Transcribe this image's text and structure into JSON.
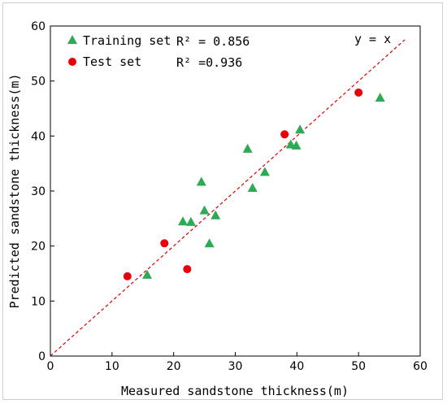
{
  "chart_data": {
    "type": "scatter",
    "xlabel": "Measured sandstone thickness(m)",
    "ylabel": "Predicted sandstone thickness(m)",
    "xlim": [
      0,
      60
    ],
    "ylim": [
      0,
      60
    ],
    "x_ticks": [
      "0",
      "10",
      "20",
      "30",
      "40",
      "50",
      "60"
    ],
    "y_ticks": [
      "0",
      "10",
      "20",
      "30",
      "40",
      "50",
      "60"
    ],
    "grid": false,
    "legend_position": "top-left",
    "reference_line": {
      "label": "y = x",
      "color": "#e00000",
      "style": "dashed",
      "x_range": [
        0,
        57.5
      ]
    },
    "series": [
      {
        "name": "Training set",
        "r2_label": "R² = 0.856",
        "marker": "triangle",
        "color": "#2eaa57",
        "points": [
          [
            15.7,
            14.8
          ],
          [
            21.5,
            24.5
          ],
          [
            22.8,
            24.4
          ],
          [
            24.5,
            31.7
          ],
          [
            25.0,
            26.5
          ],
          [
            25.8,
            20.5
          ],
          [
            26.8,
            25.6
          ],
          [
            32.0,
            37.7
          ],
          [
            32.8,
            30.6
          ],
          [
            34.8,
            33.5
          ],
          [
            39.0,
            38.5
          ],
          [
            39.9,
            38.3
          ],
          [
            40.5,
            41.2
          ],
          [
            53.5,
            47.0
          ]
        ]
      },
      {
        "name": "Test set",
        "r2_label": "R² =0.936",
        "marker": "circle",
        "color": "#e8000b",
        "points": [
          [
            12.5,
            14.5
          ],
          [
            18.5,
            20.5
          ],
          [
            22.2,
            15.8
          ],
          [
            38.0,
            40.3
          ],
          [
            50.0,
            47.9
          ]
        ]
      }
    ]
  }
}
